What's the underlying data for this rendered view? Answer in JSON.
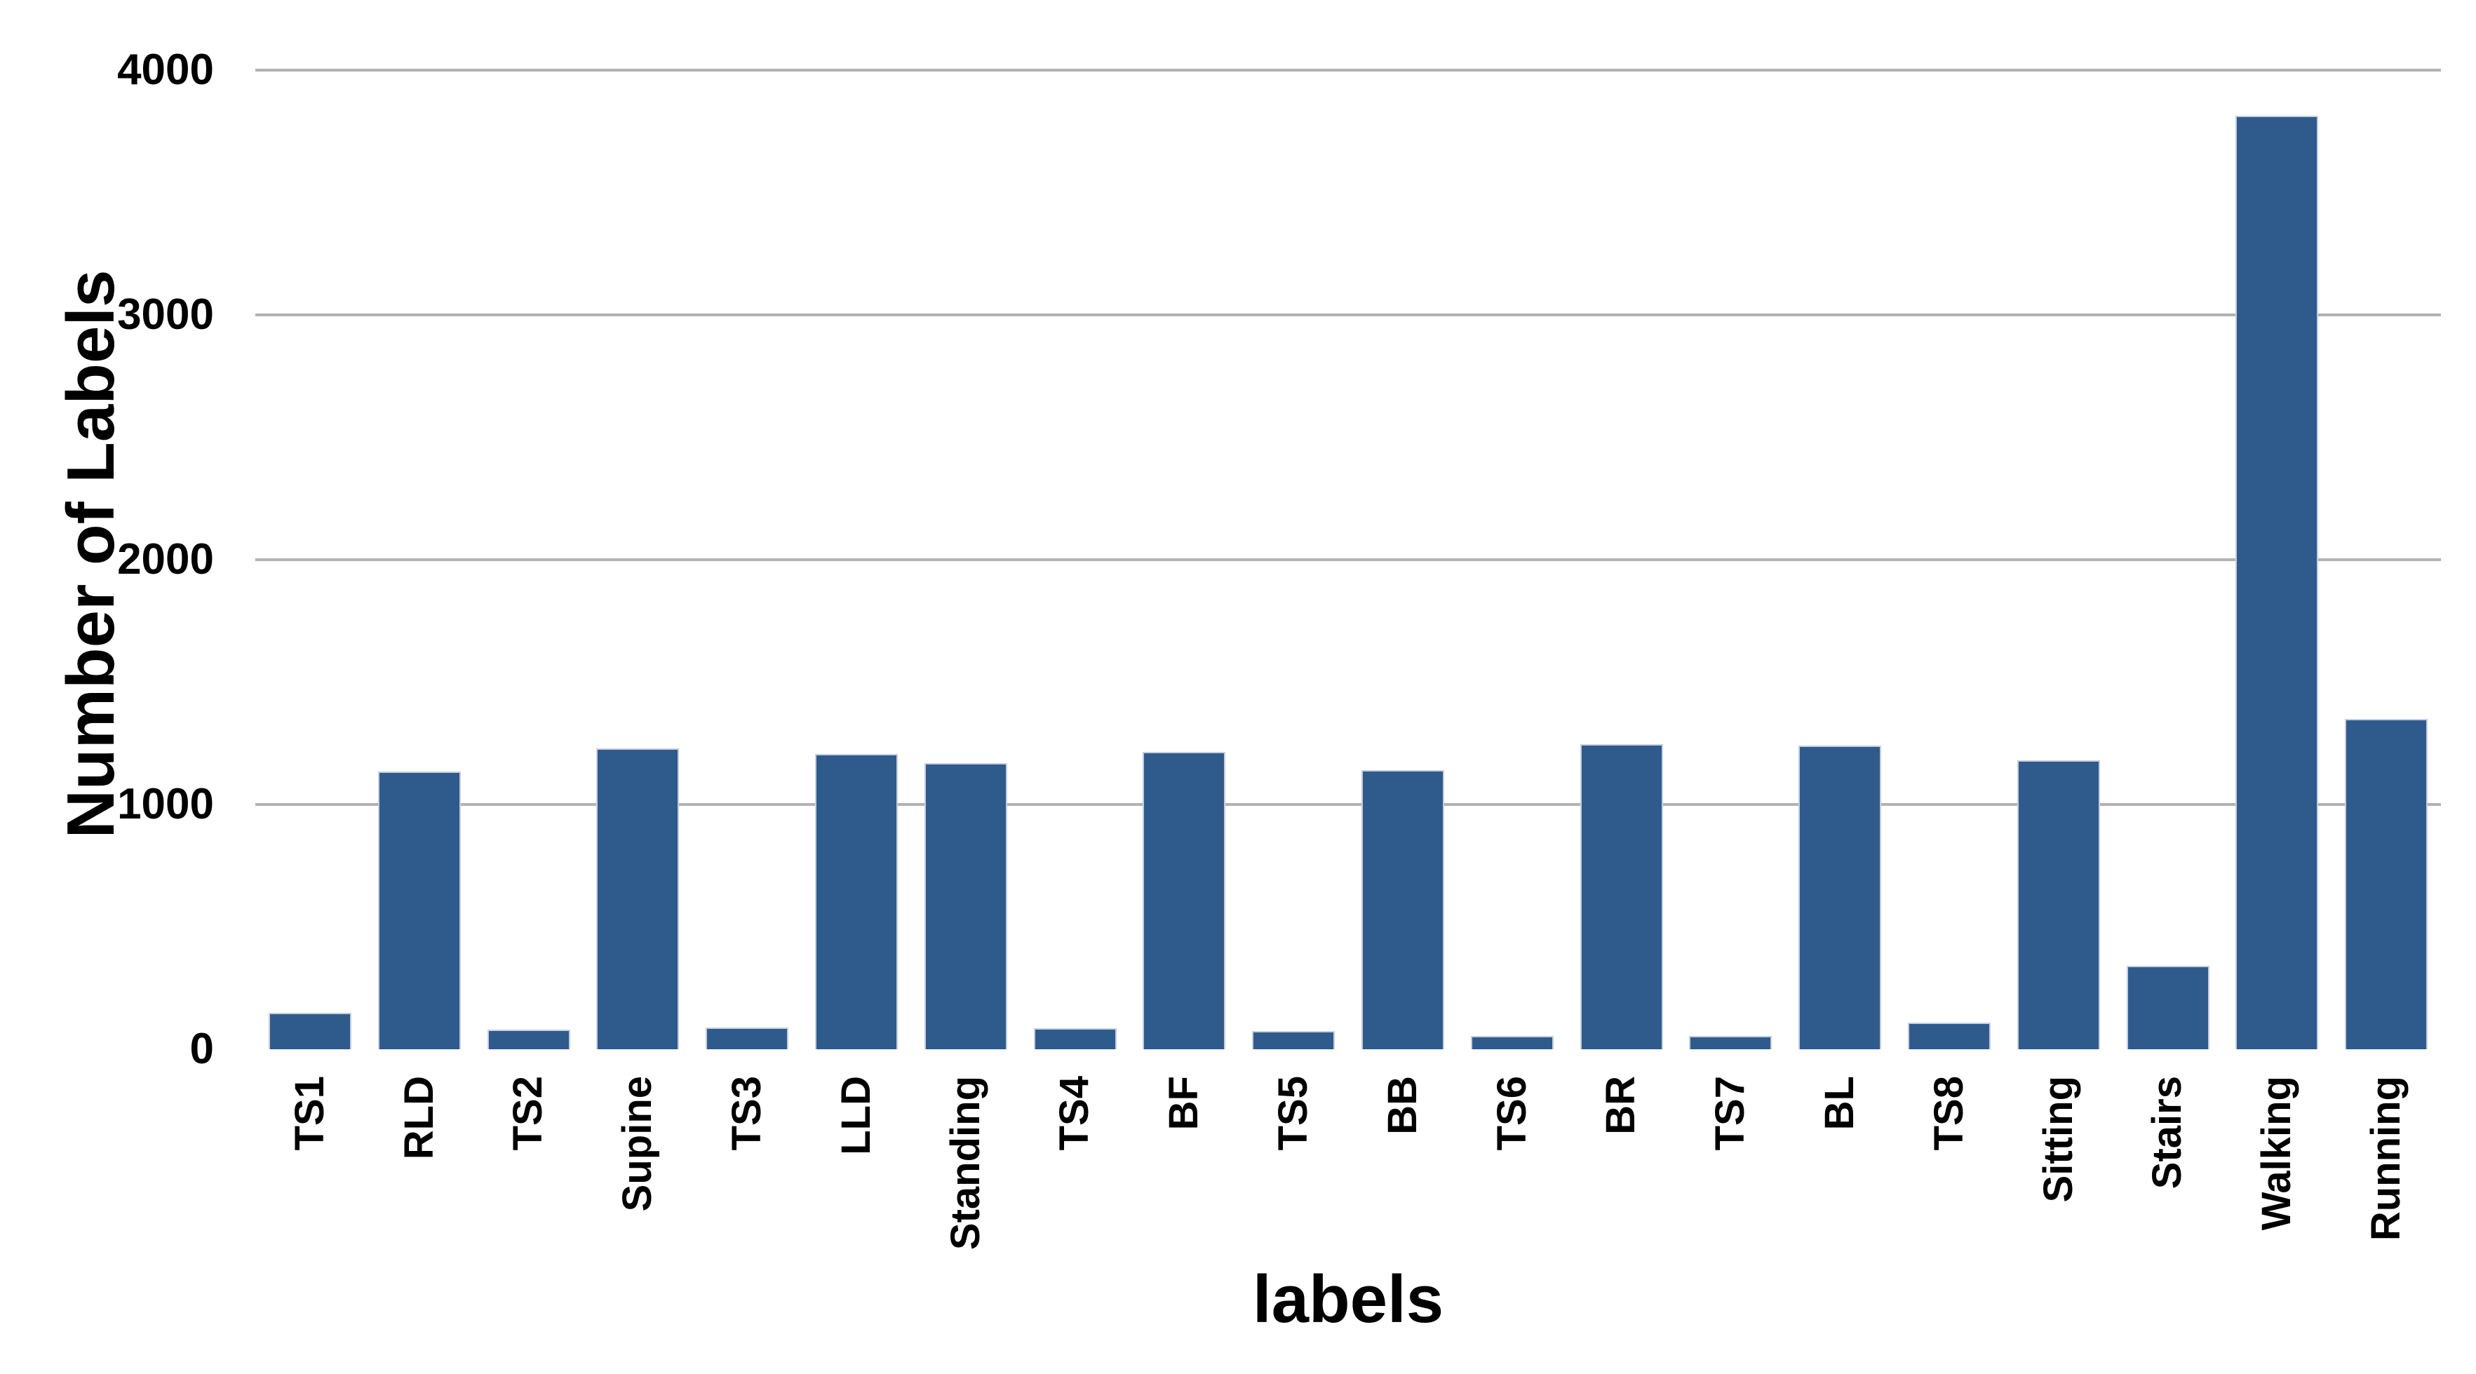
{
  "chart_data": {
    "type": "bar",
    "title": "",
    "xlabel": "labels",
    "ylabel": "Number of Labels",
    "categories": [
      "TS1",
      "RLD",
      "TS2",
      "Supine",
      "TS3",
      "LLD",
      "Standing",
      "TS4",
      "BF",
      "TS5",
      "BB",
      "TS6",
      "BR",
      "TS7",
      "BL",
      "TS8",
      "Sitting",
      "Stairs",
      "Walking",
      "Running"
    ],
    "values": [
      150,
      1135,
      80,
      1230,
      90,
      1205,
      1170,
      85,
      1215,
      75,
      1140,
      55,
      1245,
      55,
      1240,
      110,
      1180,
      340,
      3815,
      1350
    ],
    "ylim": [
      0,
      4000
    ],
    "yticks": [
      0,
      1000,
      2000,
      3000,
      4000
    ],
    "grid": "horizontal-only",
    "legend": "none",
    "bar_color": "#2F5A8C",
    "bar_edge_color": "#c6cedc",
    "gridline_color": "#b2b2b2",
    "text_color": "#000000",
    "background_color": "#ffffff"
  }
}
